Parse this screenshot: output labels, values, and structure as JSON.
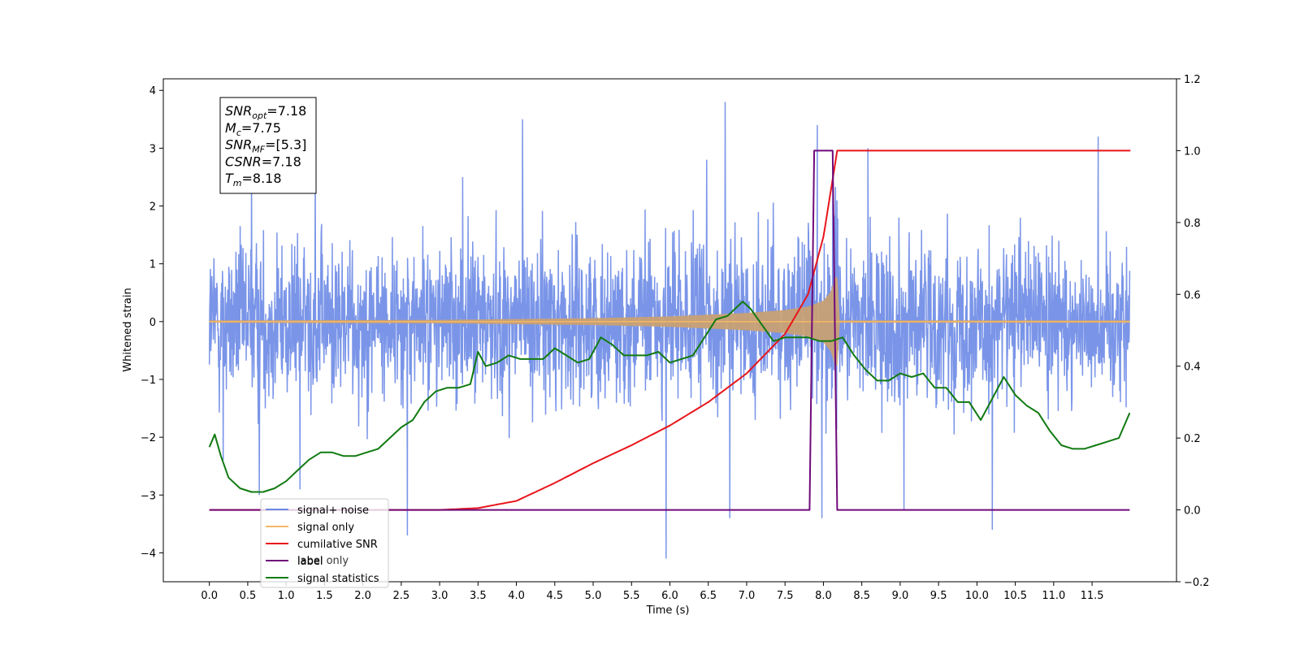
{
  "chart_data": {
    "type": "line",
    "xlabel": "Time (s)",
    "ylabel": "Whitened strain",
    "xlim": [
      -0.6,
      12.6
    ],
    "ylim_left": [
      -4.5,
      4.2
    ],
    "ylim_right": [
      -0.2,
      1.2
    ],
    "x_ticks": [
      "0.0",
      "0.5",
      "1.0",
      "1.5",
      "2.0",
      "2.5",
      "3.0",
      "3.5",
      "4.0",
      "4.5",
      "5.0",
      "5.5",
      "6.0",
      "6.5",
      "7.0",
      "7.5",
      "8.0",
      "8.5",
      "9.0",
      "9.5",
      "10.0",
      "10.5",
      "11.0",
      "11.5"
    ],
    "y_left_ticks": [
      -4,
      -3,
      -2,
      -1,
      0,
      1,
      2,
      3,
      4
    ],
    "y_right_ticks": [
      "−0.2",
      "0.0",
      "0.2",
      "0.4",
      "0.6",
      "0.8",
      "1.0",
      "1.2"
    ],
    "legend_position": "lower-left",
    "colors": {
      "signal_noise": "#6b8ae6",
      "signal_only": "#f5b866",
      "cumulative_snr": "#e8151b",
      "label": "#6f0a7a",
      "signal_statistics": "#117a11",
      "signal_fill": "#c8a074"
    },
    "series": [
      {
        "name": "signal+ noise",
        "axis": "left",
        "x_range": [
          0.0,
          11.99
        ],
        "y_band": [
          -2.1,
          2.3
        ],
        "spikes": [
          [
            0.18,
            -2.4
          ],
          [
            0.55,
            2.6
          ],
          [
            0.65,
            -3.0
          ],
          [
            1.18,
            -2.9
          ],
          [
            1.38,
            2.7
          ],
          [
            2.58,
            -3.7
          ],
          [
            3.3,
            2.5
          ],
          [
            4.08,
            3.5
          ],
          [
            5.95,
            -4.1
          ],
          [
            6.48,
            2.8
          ],
          [
            6.72,
            3.8
          ],
          [
            6.78,
            -3.4
          ],
          [
            7.92,
            3.4
          ],
          [
            7.98,
            -3.4
          ],
          [
            8.58,
            3.0
          ],
          [
            9.05,
            -3.25
          ],
          [
            10.2,
            -3.6
          ],
          [
            11.58,
            3.2
          ]
        ]
      },
      {
        "name": "signal only",
        "axis": "left",
        "x": [
          0.0,
          3.0,
          5.0,
          6.0,
          6.5,
          7.0,
          7.5,
          7.8,
          8.0,
          8.1,
          8.18,
          8.2,
          11.99
        ],
        "amplitude": [
          0.02,
          0.03,
          0.06,
          0.09,
          0.12,
          0.15,
          0.2,
          0.26,
          0.36,
          0.52,
          0.9,
          0.02,
          0.02
        ]
      },
      {
        "name": "cumilative SNR",
        "axis": "right",
        "x": [
          0.0,
          3.0,
          3.5,
          4.0,
          4.5,
          5.0,
          5.5,
          6.0,
          6.5,
          7.0,
          7.5,
          7.8,
          8.0,
          8.18,
          12.0
        ],
        "values": [
          0.0,
          0.0,
          0.005,
          0.025,
          0.075,
          0.13,
          0.18,
          0.235,
          0.3,
          0.38,
          0.49,
          0.6,
          0.76,
          1.0,
          1.0
        ]
      },
      {
        "name": "label",
        "axis": "right",
        "x": [
          0.0,
          7.82,
          7.88,
          8.12,
          8.18,
          11.99
        ],
        "values": [
          0.0,
          0.0,
          1.0,
          1.0,
          0.0,
          0.0
        ]
      },
      {
        "name": "signal statistics",
        "axis": "right",
        "x": [
          0.0,
          0.07,
          0.15,
          0.25,
          0.4,
          0.55,
          0.7,
          0.85,
          1.0,
          1.15,
          1.3,
          1.45,
          1.6,
          1.75,
          1.9,
          2.05,
          2.2,
          2.35,
          2.5,
          2.65,
          2.8,
          2.95,
          3.1,
          3.25,
          3.4,
          3.5,
          3.6,
          3.75,
          3.9,
          4.05,
          4.2,
          4.35,
          4.5,
          4.65,
          4.8,
          4.95,
          5.1,
          5.25,
          5.4,
          5.55,
          5.7,
          5.85,
          6.0,
          6.15,
          6.3,
          6.45,
          6.6,
          6.75,
          6.85,
          6.95,
          7.05,
          7.15,
          7.25,
          7.35,
          7.5,
          7.65,
          7.8,
          7.95,
          8.1,
          8.25,
          8.4,
          8.55,
          8.7,
          8.85,
          9.0,
          9.15,
          9.3,
          9.45,
          9.6,
          9.75,
          9.9,
          10.05,
          10.2,
          10.35,
          10.5,
          10.65,
          10.8,
          10.95,
          11.1,
          11.25,
          11.4,
          11.55,
          11.7,
          11.85,
          11.99
        ],
        "values": [
          0.175,
          0.21,
          0.15,
          0.09,
          0.06,
          0.05,
          0.05,
          0.06,
          0.08,
          0.11,
          0.14,
          0.16,
          0.16,
          0.15,
          0.15,
          0.16,
          0.17,
          0.2,
          0.23,
          0.25,
          0.3,
          0.33,
          0.34,
          0.34,
          0.35,
          0.44,
          0.4,
          0.41,
          0.43,
          0.42,
          0.42,
          0.42,
          0.45,
          0.43,
          0.41,
          0.42,
          0.48,
          0.46,
          0.43,
          0.43,
          0.43,
          0.44,
          0.41,
          0.42,
          0.43,
          0.48,
          0.53,
          0.54,
          0.56,
          0.58,
          0.56,
          0.53,
          0.5,
          0.47,
          0.48,
          0.48,
          0.48,
          0.47,
          0.47,
          0.48,
          0.43,
          0.39,
          0.36,
          0.36,
          0.38,
          0.37,
          0.38,
          0.34,
          0.34,
          0.3,
          0.3,
          0.25,
          0.31,
          0.37,
          0.32,
          0.29,
          0.27,
          0.22,
          0.18,
          0.17,
          0.17,
          0.18,
          0.19,
          0.2,
          0.27
        ]
      }
    ],
    "legend": [
      "signal+ noise",
      "signal only",
      "cumilative SNR",
      "label only",
      "label",
      "signal statistics"
    ],
    "info_box": [
      {
        "base": "SNR",
        "sub": "opt",
        "value": "=7.18"
      },
      {
        "base": "M",
        "sub": "c",
        "value": "=7.75"
      },
      {
        "base": "SNR",
        "sub": "MF",
        "value": "=[5.3]"
      },
      {
        "base": "CSNR",
        "sub": "",
        "value": "=7.18"
      },
      {
        "base": "T",
        "sub": "m",
        "value": "=8.18"
      }
    ]
  }
}
